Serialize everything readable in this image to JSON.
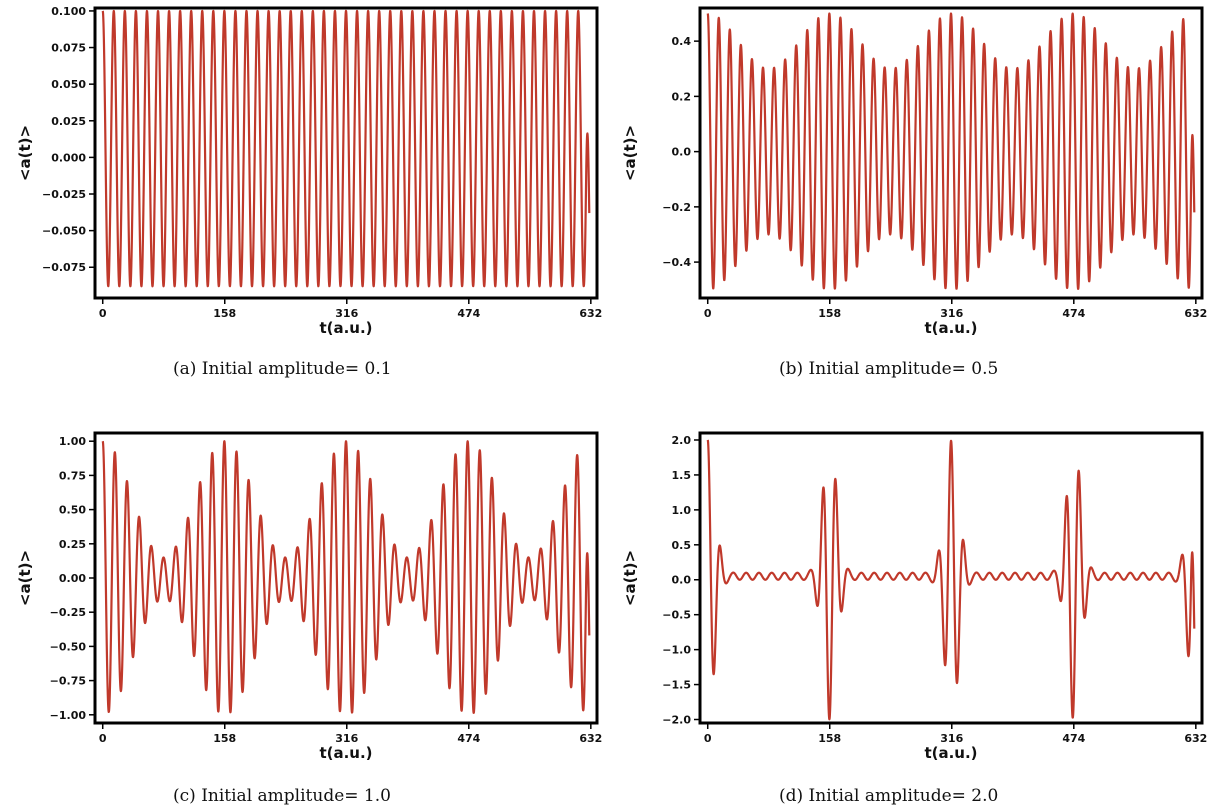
{
  "chart_data": [
    {
      "id": "a",
      "type": "line",
      "caption": "(a) Initial amplitude= 0.1",
      "xlabel": "t(a.u.)",
      "ylabel": "<a(t)>",
      "xlim": [
        -10,
        640
      ],
      "ylim": [
        -0.096,
        0.102
      ],
      "xticks": [
        "0",
        "158",
        "316",
        "474",
        "632"
      ],
      "yticks": [
        "0.100",
        "0.075",
        "0.050",
        "0.025",
        "0.000",
        "−0.025",
        "−0.050",
        "−0.075"
      ],
      "grid": false,
      "legend": "none",
      "color": "#c0392b",
      "signal": {
        "duration": 630,
        "cycles": 44,
        "envelope": "constant",
        "max": 0.1,
        "min": -0.088,
        "end_value": -0.038
      }
    },
    {
      "id": "b",
      "type": "line",
      "caption": "(b) Initial amplitude= 0.5",
      "xlabel": "t(a.u.)",
      "ylabel": "<a(t)>",
      "xlim": [
        -10,
        640
      ],
      "ylim": [
        -0.53,
        0.52
      ],
      "xticks": [
        "0",
        "158",
        "316",
        "474",
        "632"
      ],
      "yticks": [
        "0.4",
        "0.2",
        "0.0",
        "−0.2",
        "−0.4"
      ],
      "grid": false,
      "legend": "none",
      "color": "#c0392b",
      "signal": {
        "duration": 630,
        "cycles": 44,
        "envelope": "beats",
        "beat_period_t": 158,
        "peak_amplitude": 0.5,
        "min_amplitude": 0.3,
        "end_value": -0.22
      }
    },
    {
      "id": "c",
      "type": "line",
      "caption": "(c) Initial amplitude= 1.0",
      "xlabel": "t(a.u.)",
      "ylabel": "<a(t)>",
      "xlim": [
        -10,
        640
      ],
      "ylim": [
        -1.06,
        1.06
      ],
      "xticks": [
        "0",
        "158",
        "316",
        "474",
        "632"
      ],
      "yticks": [
        "1.00",
        "0.75",
        "0.50",
        "0.25",
        "0.00",
        "−0.25",
        "−0.50",
        "−0.75",
        "−1.00"
      ],
      "grid": false,
      "legend": "none",
      "color": "#c0392b",
      "signal": {
        "duration": 630,
        "cycles": 40,
        "envelope": "beats",
        "beat_period_t": 158,
        "peak_amplitude": 1.0,
        "min_amplitude": 0.15,
        "end_value": -0.42
      }
    },
    {
      "id": "d",
      "type": "line",
      "caption": "(d) Initial amplitude= 2.0",
      "xlabel": "t(a.u.)",
      "ylabel": "<a(t)>",
      "xlim": [
        -10,
        640
      ],
      "ylim": [
        -2.05,
        2.1
      ],
      "xticks": [
        "0",
        "158",
        "316",
        "474",
        "632"
      ],
      "yticks": [
        "2.0",
        "1.5",
        "1.0",
        "0.5",
        "0.0",
        "−0.5",
        "−1.0",
        "−1.5",
        "−2.0"
      ],
      "grid": false,
      "legend": "none",
      "color": "#c0392b",
      "signal": {
        "duration": 630,
        "cycles": 38,
        "envelope": "bursts",
        "burst_period_t": 158,
        "peak_amplitude": 2.0,
        "baseline_offset": 0.05,
        "baseline_amplitude": 0.05,
        "end_value": -0.7
      }
    }
  ]
}
